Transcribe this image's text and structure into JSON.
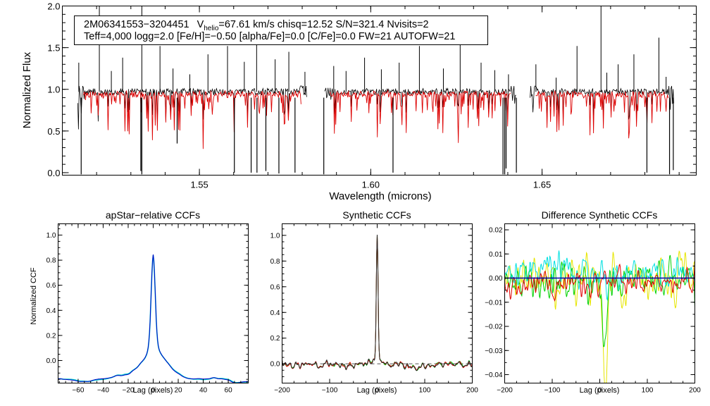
{
  "chart_data": [
    {
      "type": "line",
      "name": "spectrum",
      "xlabel": "Wavelength (microns)",
      "ylabel": "Normalized Flux",
      "xlim": [
        1.51,
        1.695
      ],
      "ylim": [
        -0.03,
        2.0
      ],
      "xticks": [
        1.55,
        1.6,
        1.65
      ],
      "xtick_labels": [
        "1.55",
        "1.60",
        "1.65"
      ],
      "yticks": [
        0.0,
        0.5,
        1.0,
        1.5,
        2.0
      ],
      "ytick_labels": [
        "0.0",
        "0.5",
        "1.0",
        "1.5",
        "2.0"
      ],
      "info": {
        "line1_star": "2M06341553−3204451",
        "line1_v": "V",
        "line1_v_sub": "helio",
        "line1_rest": "=67.61 km/s  chisq=12.52  S/N=321.4  Nvisits=2",
        "line2": "Teff=4,000 logg=2.0 [Fe/H]=−0.50 [alpha/Fe]=0.0 [C/Fe]=0.0 FW=21 AUTOFW=21"
      },
      "chips": [
        [
          1.5145,
          1.5815
        ],
        [
          1.5865,
          1.6425
        ],
        [
          1.6465,
          1.6885
        ]
      ],
      "continuum": 0.97,
      "series": [
        {
          "name": "observed",
          "color": "#000000"
        },
        {
          "name": "model",
          "color": "#dd0000"
        }
      ],
      "spikes": [
        {
          "x": 1.5208,
          "y": 2.0
        },
        {
          "x": 1.5148,
          "y": 1.32
        },
        {
          "x": 1.5243,
          "y": 1.22
        },
        {
          "x": 1.5276,
          "y": 1.38
        },
        {
          "x": 1.5332,
          "y": 2.0
        },
        {
          "x": 1.5385,
          "y": 1.52
        },
        {
          "x": 1.5423,
          "y": 1.25
        },
        {
          "x": 1.5472,
          "y": 1.18
        },
        {
          "x": 1.5525,
          "y": 1.42
        },
        {
          "x": 1.5582,
          "y": 1.52
        },
        {
          "x": 1.5631,
          "y": 1.33
        },
        {
          "x": 1.5667,
          "y": 1.85
        },
        {
          "x": 1.5721,
          "y": 1.36
        },
        {
          "x": 1.5761,
          "y": 1.45
        },
        {
          "x": 1.5808,
          "y": 1.21
        },
        {
          "x": 1.5892,
          "y": 1.28
        },
        {
          "x": 1.5928,
          "y": 1.22
        },
        {
          "x": 1.5982,
          "y": 1.38
        },
        {
          "x": 1.6031,
          "y": 1.24
        },
        {
          "x": 1.6083,
          "y": 1.32
        },
        {
          "x": 1.6142,
          "y": 1.52
        },
        {
          "x": 1.6212,
          "y": 1.25
        },
        {
          "x": 1.6261,
          "y": 1.85
        },
        {
          "x": 1.6322,
          "y": 1.32
        },
        {
          "x": 1.6362,
          "y": 1.23
        },
        {
          "x": 1.6402,
          "y": 1.18
        },
        {
          "x": 1.6482,
          "y": 1.3
        },
        {
          "x": 1.6541,
          "y": 1.14
        },
        {
          "x": 1.6602,
          "y": 1.52
        },
        {
          "x": 1.6672,
          "y": 2.0
        },
        {
          "x": 1.6689,
          "y": 1.2
        },
        {
          "x": 1.6722,
          "y": 1.3
        },
        {
          "x": 1.6768,
          "y": 1.42
        },
        {
          "x": 1.6841,
          "y": 1.62
        },
        {
          "x": 1.6862,
          "y": 1.15
        }
      ],
      "dips": [
        {
          "x": 1.5155,
          "y": -0.02
        },
        {
          "x": 1.5329,
          "y": 0.02
        },
        {
          "x": 1.5332,
          "y": -0.02
        },
        {
          "x": 1.5435,
          "y": 0.35
        },
        {
          "x": 1.5602,
          "y": 0.0
        },
        {
          "x": 1.5651,
          "y": 0.0
        },
        {
          "x": 1.5668,
          "y": 0.0
        },
        {
          "x": 1.5694,
          "y": 0.02
        },
        {
          "x": 1.5732,
          "y": -0.01
        },
        {
          "x": 1.5779,
          "y": 0.0
        },
        {
          "x": 1.5863,
          "y": -0.02
        },
        {
          "x": 1.6065,
          "y": 0.0
        },
        {
          "x": 1.6386,
          "y": -0.02
        },
        {
          "x": 1.6391,
          "y": -0.02
        },
        {
          "x": 1.6395,
          "y": 0.05
        },
        {
          "x": 1.6425,
          "y": 0.0
        },
        {
          "x": 1.6806,
          "y": 0.0
        },
        {
          "x": 1.6872,
          "y": -0.02
        },
        {
          "x": 1.6883,
          "y": 0.03
        }
      ]
    },
    {
      "type": "line",
      "name": "apstar-ccf",
      "title": "apStar−relative CCFs",
      "xlabel": "Lag (pixels)",
      "ylabel": "Normalized CCF",
      "xlim": [
        -76,
        76
      ],
      "ylim": [
        -0.18,
        1.09
      ],
      "xticks": [
        -60,
        -40,
        -20,
        0,
        20,
        40,
        60
      ],
      "xtick_labels": [
        "−60",
        "−40",
        "−20",
        "0",
        "20",
        "40",
        "60"
      ],
      "yticks": [
        0.0,
        0.2,
        0.4,
        0.6,
        0.8,
        1.0
      ],
      "ytick_labels": [
        "0.0",
        "0.2",
        "0.4",
        "0.6",
        "0.8",
        "1.0"
      ],
      "series": [
        {
          "name": "visit 1",
          "color": "#00c8c8"
        },
        {
          "name": "visit 2",
          "color": "#0000c8"
        }
      ]
    },
    {
      "type": "line",
      "name": "synthetic-ccf",
      "title": "Synthetic CCFs",
      "xlabel": "Lag (pixels)",
      "ylabel": "",
      "xlim": [
        -200,
        200
      ],
      "ylim": [
        -0.15,
        1.09
      ],
      "xticks": [
        -200,
        -100,
        0,
        100,
        200
      ],
      "xtick_labels": [
        "−200",
        "−100",
        "0",
        "100",
        "200"
      ],
      "yticks": [
        0.0,
        0.2,
        0.4,
        0.6,
        0.8,
        1.0
      ],
      "ytick_labels": [
        "0.0",
        "0.2",
        "0.4",
        "0.6",
        "0.8",
        "1.0"
      ],
      "baseline": 0.0,
      "series": [
        {
          "name": "ccf green",
          "color": "#00b400"
        },
        {
          "name": "ccf red",
          "color": "#dc0000"
        },
        {
          "name": "ccf dark",
          "color": "#282828"
        }
      ]
    },
    {
      "type": "line",
      "name": "difference-ccf",
      "title": "Difference Synthetic CCFs",
      "xlabel": "Lag (pixels)",
      "ylabel": "",
      "xlim": [
        -200,
        200
      ],
      "ylim": [
        -0.0435,
        0.0225
      ],
      "xticks": [
        -200,
        -100,
        0,
        100,
        200
      ],
      "xtick_labels": [
        "−200",
        "−100",
        "0",
        "100",
        "200"
      ],
      "yticks": [
        -0.04,
        -0.03,
        -0.02,
        -0.01,
        0.0,
        0.01,
        0.02
      ],
      "ytick_labels": [
        "−0.04",
        "−0.03",
        "−0.02",
        "−0.01",
        "0.00",
        "0.01",
        "0.02"
      ],
      "zero_line_color": "#0000aa",
      "series": [
        {
          "name": "yellow",
          "color": "#e6e600"
        },
        {
          "name": "green",
          "color": "#00d200"
        },
        {
          "name": "cyan",
          "color": "#00e0e0"
        },
        {
          "name": "red",
          "color": "#e00000"
        }
      ]
    }
  ]
}
